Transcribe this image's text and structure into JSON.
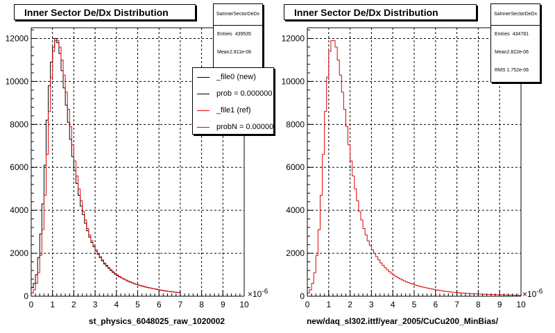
{
  "colors": {
    "new": "#000000",
    "ref": "#dd0000",
    "grid": "#000000"
  },
  "left_panel": {
    "title": "Inner Sector De/Dx Distribution",
    "stats": {
      "name": "SaInnerSectorDeDx",
      "rows": [
        {
          "key": "Entries",
          "value": "439535"
        },
        {
          "key": "Mean",
          "value": "2.811e-06"
        }
      ]
    },
    "legend": [
      {
        "label": "_file0 (new)",
        "color": "#000000"
      },
      {
        "label": "prob = 0.000000",
        "color": "#000000"
      },
      {
        "label": "_file1 (ref)",
        "color": "#dd0000"
      },
      {
        "label": "probN = 0.000000",
        "color": "#dd0000"
      }
    ],
    "xtitle": "st_physics_6048025_raw_1020002",
    "exponent": "×10",
    "exponent_power": "-6"
  },
  "right_panel": {
    "title": "Inner Sector De/Dx Distribution",
    "stats": {
      "name": "SaInnerSectorDeDx",
      "rows": [
        {
          "key": "Entries",
          "value": "434781"
        },
        {
          "key": "Mean",
          "value": "2.822e-06"
        },
        {
          "key": "RMS",
          "value": "1.752e-06"
        }
      ]
    },
    "xtitle": "new/daq_sl302.ittf/year_2005/CuCu200_MinBias/",
    "exponent": "×10",
    "exponent_power": "-6"
  },
  "chart_data": [
    {
      "type": "histogram",
      "title": "Inner Sector De/Dx Distribution",
      "xlabel": "st_physics_6048025_raw_1020002",
      "x_unit_exponent": "10^-6",
      "xlim": [
        0,
        10
      ],
      "ylim": [
        0,
        12500
      ],
      "xticks": [
        "0",
        "1",
        "2",
        "3",
        "4",
        "5",
        "6",
        "7",
        "8",
        "9",
        "10"
      ],
      "yticks": [
        "0",
        "2000",
        "4000",
        "6000",
        "8000",
        "10000",
        "12000"
      ],
      "grid": true,
      "legend_position": "top-right",
      "bin_width": 0.1,
      "series": [
        {
          "name": "_file0 (new)",
          "color": "#000000",
          "values": [
            400,
            600,
            1000,
            1800,
            2900,
            4300,
            6100,
            8200,
            9800,
            10900,
            11600,
            12000,
            11800,
            11300,
            10500,
            9700,
            8900,
            8100,
            7300,
            6500,
            5850,
            5250,
            4700,
            4200,
            3800,
            3400,
            3050,
            2750,
            2500,
            2300,
            2100,
            1950,
            1800,
            1650,
            1500,
            1400,
            1300,
            1200,
            1110,
            1030,
            960,
            900,
            850,
            800,
            750,
            700,
            660,
            620,
            580,
            550,
            520,
            490,
            460,
            430,
            410,
            390,
            370,
            350,
            330,
            310,
            290,
            270,
            255,
            240,
            225,
            210,
            200,
            190,
            180,
            170
          ]
        },
        {
          "name": "_file1 (ref)",
          "color": "#dd0000",
          "values": [
            150,
            300,
            600,
            1100,
            1900,
            3100,
            4700,
            6600,
            8600,
            10200,
            11400,
            11900,
            11900,
            11600,
            11000,
            10300,
            9500,
            8700,
            7900,
            7050,
            6300,
            5600,
            5000,
            4450,
            3950,
            3550,
            3150,
            2850,
            2580,
            2360,
            2160,
            1990,
            1840,
            1690,
            1550,
            1440,
            1330,
            1230,
            1140,
            1060,
            990,
            920,
            860,
            810,
            760,
            710,
            670,
            630,
            590,
            560,
            525,
            495,
            465,
            440,
            415,
            395,
            375,
            355,
            335,
            315,
            295,
            280,
            262,
            247,
            232,
            217,
            205,
            194,
            184,
            175
          ]
        }
      ]
    },
    {
      "type": "histogram",
      "title": "Inner Sector De/Dx Distribution",
      "xlabel": "new/daq_sl302.ittf/year_2005/CuCu200_MinBias/",
      "x_unit_exponent": "10^-6",
      "xlim": [
        0,
        10
      ],
      "ylim": [
        0,
        12500
      ],
      "xticks": [
        "0",
        "1",
        "2",
        "3",
        "4",
        "5",
        "6",
        "7",
        "8",
        "9",
        "10"
      ],
      "yticks": [
        "0",
        "2000",
        "4000",
        "6000",
        "8000",
        "10000",
        "12000"
      ],
      "grid": true,
      "bin_width": 0.1,
      "series": [
        {
          "color": "#dd0000",
          "values": [
            150,
            300,
            600,
            1100,
            1900,
            3100,
            4700,
            6600,
            8600,
            10200,
            11400,
            11900,
            11900,
            11600,
            11000,
            10300,
            9500,
            8700,
            7900,
            7050,
            6300,
            5600,
            5000,
            4450,
            3950,
            3550,
            3150,
            2850,
            2580,
            2360,
            2160,
            1990,
            1840,
            1690,
            1550,
            1440,
            1330,
            1230,
            1140,
            1060,
            990,
            920,
            860,
            810,
            760,
            710,
            670,
            630,
            590,
            560,
            525,
            495,
            465,
            440,
            415,
            395,
            375,
            355,
            335,
            315,
            295,
            280,
            262,
            247,
            232,
            217,
            205,
            194,
            184,
            175,
            166,
            158,
            150,
            143,
            136,
            130,
            124,
            118,
            113,
            108,
            103,
            98,
            94,
            90,
            86,
            82,
            79,
            76,
            73,
            70,
            67,
            64,
            61,
            59,
            57,
            55,
            53,
            51,
            49,
            47
          ]
        }
      ]
    }
  ]
}
